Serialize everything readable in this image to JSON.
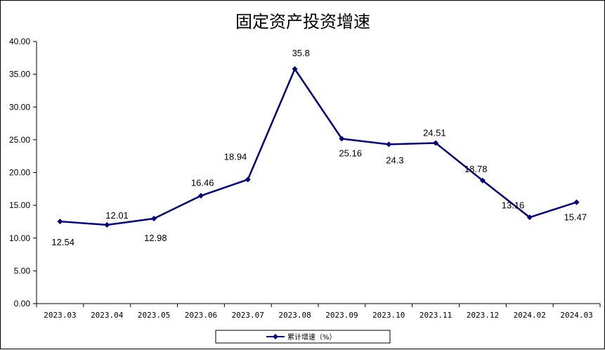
{
  "chart_data": {
    "type": "line",
    "title": "固定资产投资增速",
    "categories": [
      "2023.03",
      "2023.04",
      "2023.05",
      "2023.06",
      "2023.07",
      "2023.08",
      "2023.09",
      "2023.10",
      "2023.11",
      "2023.12",
      "2024.02",
      "2024.03"
    ],
    "series": [
      {
        "name": "累计增速（%）",
        "values": [
          12.54,
          12.01,
          12.98,
          16.46,
          18.94,
          35.8,
          25.16,
          24.3,
          24.51,
          18.78,
          13.16,
          15.47
        ],
        "data_labels": [
          "12.54",
          "12.01",
          "12.98",
          "16.46",
          "18.94",
          "35.8",
          "25.16",
          "24.3",
          "24.51",
          "18.78",
          "13.16",
          "15.47"
        ],
        "color": "#000080"
      }
    ],
    "ylim": [
      0,
      40
    ],
    "yticks": [
      "0.00",
      "5.00",
      "10.00",
      "15.00",
      "20.00",
      "25.00",
      "30.00",
      "35.00",
      "40.00"
    ],
    "grid": false,
    "legend_position": "bottom"
  }
}
